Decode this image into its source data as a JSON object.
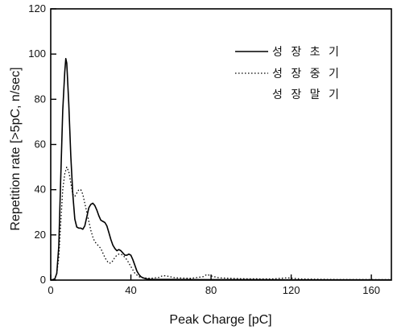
{
  "chart_data": {
    "type": "line",
    "title": "",
    "xlabel": "Peak Charge [pC]",
    "ylabel": "Repetition rate [>5pC, n/sec]",
    "xlim": [
      0,
      170
    ],
    "ylim": [
      0,
      120
    ],
    "xticks": [
      0,
      40,
      80,
      120,
      160
    ],
    "yticks": [
      0,
      20,
      40,
      60,
      80,
      100,
      120
    ],
    "grid": false,
    "legend_position": "top-right",
    "series": [
      {
        "name": "성 장 초 기",
        "style": "solid",
        "color": "#000000",
        "points": [
          [
            0,
            0
          ],
          [
            2,
            0.5
          ],
          [
            3,
            3
          ],
          [
            4,
            15
          ],
          [
            5,
            45
          ],
          [
            6,
            75
          ],
          [
            7,
            92
          ],
          [
            7.5,
            98
          ],
          [
            8,
            96
          ],
          [
            9,
            78
          ],
          [
            10,
            55
          ],
          [
            11,
            38
          ],
          [
            12,
            27
          ],
          [
            13,
            23.5
          ],
          [
            14,
            23
          ],
          [
            15,
            23
          ],
          [
            16,
            22.5
          ],
          [
            17,
            24
          ],
          [
            18,
            28
          ],
          [
            19,
            32
          ],
          [
            20,
            33.5
          ],
          [
            21,
            34
          ],
          [
            22,
            33
          ],
          [
            23,
            31
          ],
          [
            24,
            28.5
          ],
          [
            25,
            26.5
          ],
          [
            26,
            26
          ],
          [
            27,
            25.5
          ],
          [
            28,
            24
          ],
          [
            29,
            21
          ],
          [
            30,
            18
          ],
          [
            31,
            15.5
          ],
          [
            32,
            14
          ],
          [
            33,
            13
          ],
          [
            34,
            13.5
          ],
          [
            35,
            13
          ],
          [
            36,
            12
          ],
          [
            37,
            11
          ],
          [
            38,
            11
          ],
          [
            39,
            11.5
          ],
          [
            40,
            11
          ],
          [
            41,
            9
          ],
          [
            42,
            6.5
          ],
          [
            43,
            4
          ],
          [
            44,
            2.5
          ],
          [
            45,
            1.5
          ],
          [
            46,
            1
          ],
          [
            48,
            0.5
          ],
          [
            50,
            0.3
          ],
          [
            60,
            0.3
          ],
          [
            80,
            0.2
          ],
          [
            100,
            0.2
          ],
          [
            120,
            0.1
          ],
          [
            140,
            0.1
          ],
          [
            170,
            0.1
          ]
        ]
      },
      {
        "name": "성 장 중 기",
        "style": "dotted",
        "color": "#000000",
        "points": [
          [
            0,
            0
          ],
          [
            2,
            0.5
          ],
          [
            3,
            3
          ],
          [
            4,
            10
          ],
          [
            5,
            25
          ],
          [
            6,
            40
          ],
          [
            7,
            47
          ],
          [
            8,
            50
          ],
          [
            9,
            48
          ],
          [
            10,
            43
          ],
          [
            11,
            38
          ],
          [
            12,
            37
          ],
          [
            13,
            38.5
          ],
          [
            14,
            40
          ],
          [
            15,
            40
          ],
          [
            16,
            38
          ],
          [
            17,
            34
          ],
          [
            18,
            30
          ],
          [
            19,
            26
          ],
          [
            20,
            22
          ],
          [
            21,
            19
          ],
          [
            22,
            17
          ],
          [
            23,
            16
          ],
          [
            24,
            15
          ],
          [
            25,
            14
          ],
          [
            26,
            12
          ],
          [
            27,
            10
          ],
          [
            28,
            8.5
          ],
          [
            29,
            7.5
          ],
          [
            30,
            7.5
          ],
          [
            31,
            8.5
          ],
          [
            32,
            10
          ],
          [
            33,
            11
          ],
          [
            34,
            11.5
          ],
          [
            35,
            11.5
          ],
          [
            36,
            11
          ],
          [
            37,
            10
          ],
          [
            38,
            9
          ],
          [
            39,
            7.5
          ],
          [
            40,
            6
          ],
          [
            41,
            4.5
          ],
          [
            42,
            3
          ],
          [
            44,
            1.5
          ],
          [
            46,
            1
          ],
          [
            50,
            0.8
          ],
          [
            54,
            1.2
          ],
          [
            56,
            2
          ],
          [
            58,
            1.8
          ],
          [
            62,
            1
          ],
          [
            70,
            0.8
          ],
          [
            76,
            1.5
          ],
          [
            78,
            2.5
          ],
          [
            80,
            1.8
          ],
          [
            84,
            1
          ],
          [
            95,
            0.6
          ],
          [
            110,
            0.5
          ],
          [
            118,
            1
          ],
          [
            125,
            0.5
          ],
          [
            140,
            0.3
          ],
          [
            170,
            0.2
          ]
        ]
      },
      {
        "name": "성 장 말 기",
        "style": "none",
        "color": "#000000",
        "points": []
      }
    ]
  }
}
